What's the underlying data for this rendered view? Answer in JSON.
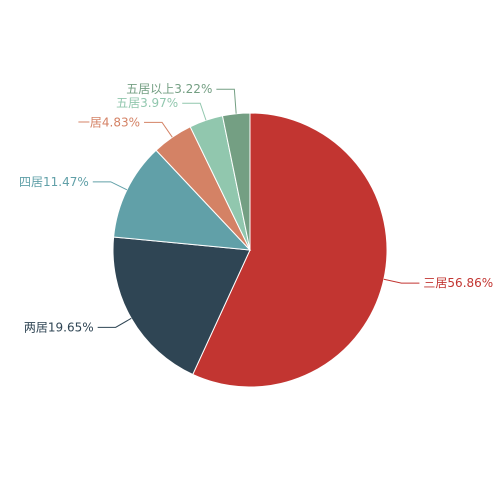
{
  "chart_data": {
    "type": "pie",
    "categories": [
      "三居",
      "两居",
      "四居",
      "一居",
      "五居",
      "五居以上"
    ],
    "values": [
      56.86,
      19.65,
      11.47,
      4.83,
      3.97,
      3.22
    ],
    "value_labels": [
      "56.86%",
      "19.65%",
      "11.47%",
      "4.83%",
      "3.97%",
      "3.22%"
    ],
    "colors": [
      "#c23531",
      "#2f4554",
      "#61a0a8",
      "#d48265",
      "#91c7ae",
      "#749f83"
    ]
  }
}
